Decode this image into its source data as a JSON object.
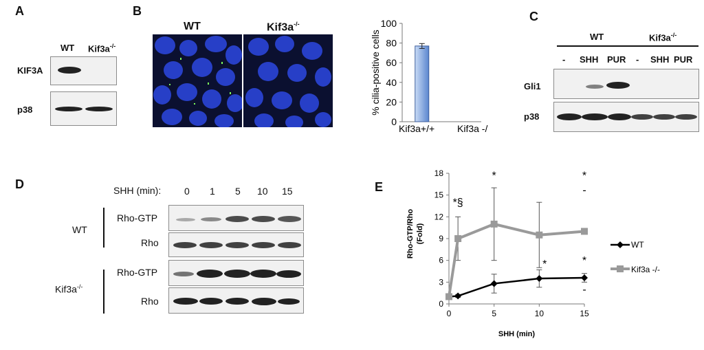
{
  "panelA": {
    "letter": "A",
    "col_wt": "WT",
    "col_kif": "Kif3a",
    "col_kif_sup": "-/-",
    "row1": "KIF3A",
    "row2": "p38"
  },
  "panelB": {
    "letter": "B",
    "img_wt": "WT",
    "img_kif": "Kif3a",
    "img_kif_sup": "-/-"
  },
  "panelC": {
    "letter": "C",
    "group_wt": "WT",
    "group_kif": "Kif3a",
    "group_kif_sup": "-/-",
    "lanes": [
      "-",
      "SHH",
      "PUR",
      "-",
      "SHH",
      "PUR"
    ],
    "row1": "Gli1",
    "row2": "p38"
  },
  "panelD": {
    "letter": "D",
    "header": "SHH (min):",
    "times": [
      "0",
      "1",
      "5",
      "10",
      "15"
    ],
    "wt_label": "WT",
    "kif_label": "Kif3a",
    "kif_sup": "-/-",
    "rows": [
      "Rho-GTP",
      "Rho",
      "Rho-GTP",
      "Rho"
    ]
  },
  "panelE": {
    "letter": "E",
    "asterisk": "*",
    "dagger": "§",
    "dash": "-"
  },
  "chart_data": [
    {
      "type": "bar",
      "categories": [
        "Kif3a+/+",
        "Kif3a -/-"
      ],
      "values": [
        77,
        0
      ],
      "errors": [
        2.5,
        0
      ],
      "ylabel": "% cilia-positive cells",
      "ylim": [
        0,
        100
      ],
      "yticks": [
        0,
        20,
        40,
        60,
        80,
        100
      ],
      "colors": [
        "#5b86cf"
      ]
    },
    {
      "type": "line",
      "xlabel": "SHH (min)",
      "ylabel": "Rho-GTP/Rho (Fold)",
      "xlim": [
        0,
        15
      ],
      "ylim": [
        0,
        18
      ],
      "xticks": [
        0,
        5,
        10,
        15
      ],
      "yticks": [
        0,
        3,
        6,
        9,
        12,
        15,
        18
      ],
      "legend_position": "right",
      "series": [
        {
          "name": "WT",
          "x": [
            0,
            1,
            5,
            10,
            15
          ],
          "values": [
            1,
            1.1,
            2.8,
            3.5,
            3.6
          ],
          "errors": [
            0.3,
            0.2,
            1.3,
            1.2,
            0.6
          ],
          "color": "#000000",
          "marker": "diamond"
        },
        {
          "name": "Kif3a -/-",
          "x": [
            0,
            1,
            5,
            10,
            15
          ],
          "values": [
            1,
            9,
            11,
            9.5,
            10
          ],
          "errors": [
            0.3,
            3,
            5,
            4.5,
            0.3
          ],
          "color": "#9a9a9a",
          "marker": "square"
        }
      ]
    }
  ]
}
